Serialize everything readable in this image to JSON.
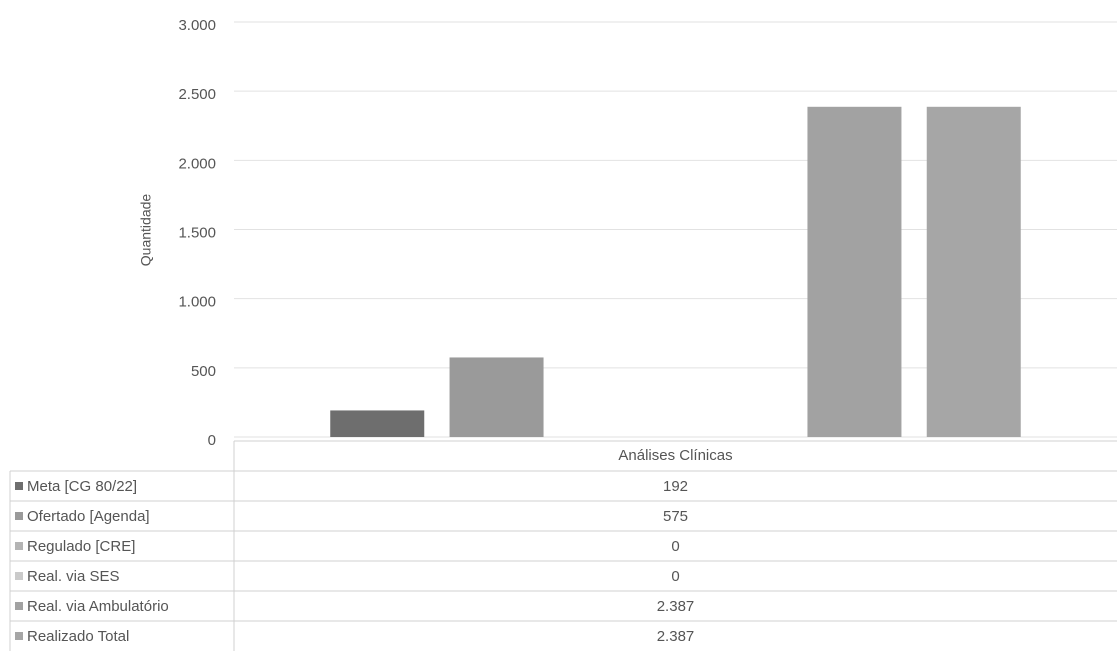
{
  "chart_data": {
    "type": "bar",
    "y_label": "Quantidade",
    "categories": [
      "Análises Clínicas"
    ],
    "ylim": [
      0,
      3000
    ],
    "yticks": [
      0,
      500,
      {
        "value": 1000,
        "label": "1.000"
      },
      {
        "value": 1500,
        "label": "1.500"
      },
      {
        "value": 2000,
        "label": "2.000"
      },
      {
        "value": 2500,
        "label": "2.500"
      },
      {
        "value": 3000,
        "label": "3.000"
      }
    ],
    "grid": true,
    "series": [
      {
        "name": "Meta [CG 80/22]",
        "color": "#6e6e6e",
        "values": [
          192
        ]
      },
      {
        "name": "Ofertado [Agenda]",
        "color": "#9a9a9a",
        "values": [
          575
        ]
      },
      {
        "name": "Regulado [CRE]",
        "color": "#b4b4b4",
        "values": [
          0
        ]
      },
      {
        "name": "Real. via SES",
        "color": "#cacaca",
        "values": [
          0
        ]
      },
      {
        "name": "Real. via Ambulatório",
        "color": "#a2a2a2",
        "values": [
          2387
        ],
        "value_labels": [
          "2.387"
        ]
      },
      {
        "name": "Realizado Total",
        "color": "#a6a6a6",
        "values": [
          2387
        ],
        "value_labels": [
          "2.387"
        ]
      }
    ]
  }
}
